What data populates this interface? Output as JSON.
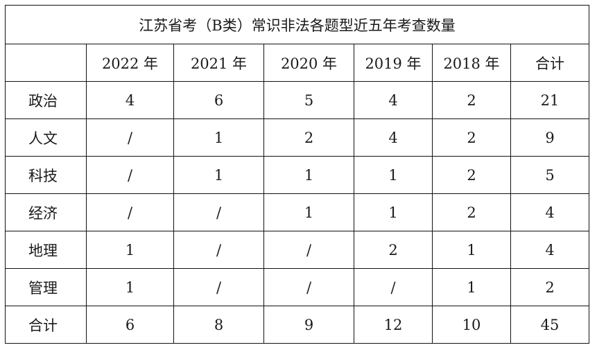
{
  "table": {
    "title": "江苏省考（B类）常识非法各题型近五年考查数量",
    "headers": [
      "",
      "2022 年",
      "2021 年",
      "2020 年",
      "2019 年",
      "2018 年",
      "合计"
    ],
    "rows": [
      {
        "label": "政治",
        "cells": [
          "4",
          "6",
          "5",
          "4",
          "2",
          "21"
        ]
      },
      {
        "label": "人文",
        "cells": [
          "/",
          "1",
          "2",
          "4",
          "2",
          "9"
        ]
      },
      {
        "label": "科技",
        "cells": [
          "/",
          "1",
          "1",
          "1",
          "2",
          "5"
        ]
      },
      {
        "label": "经济",
        "cells": [
          "/",
          "/",
          "1",
          "1",
          "2",
          "4"
        ]
      },
      {
        "label": "地理",
        "cells": [
          "1",
          "/",
          "/",
          "2",
          "1",
          "4"
        ]
      },
      {
        "label": "管理",
        "cells": [
          "1",
          "/",
          "/",
          "/",
          "1",
          "2"
        ]
      },
      {
        "label": "合计",
        "cells": [
          "6",
          "8",
          "9",
          "12",
          "10",
          "45"
        ]
      }
    ]
  }
}
